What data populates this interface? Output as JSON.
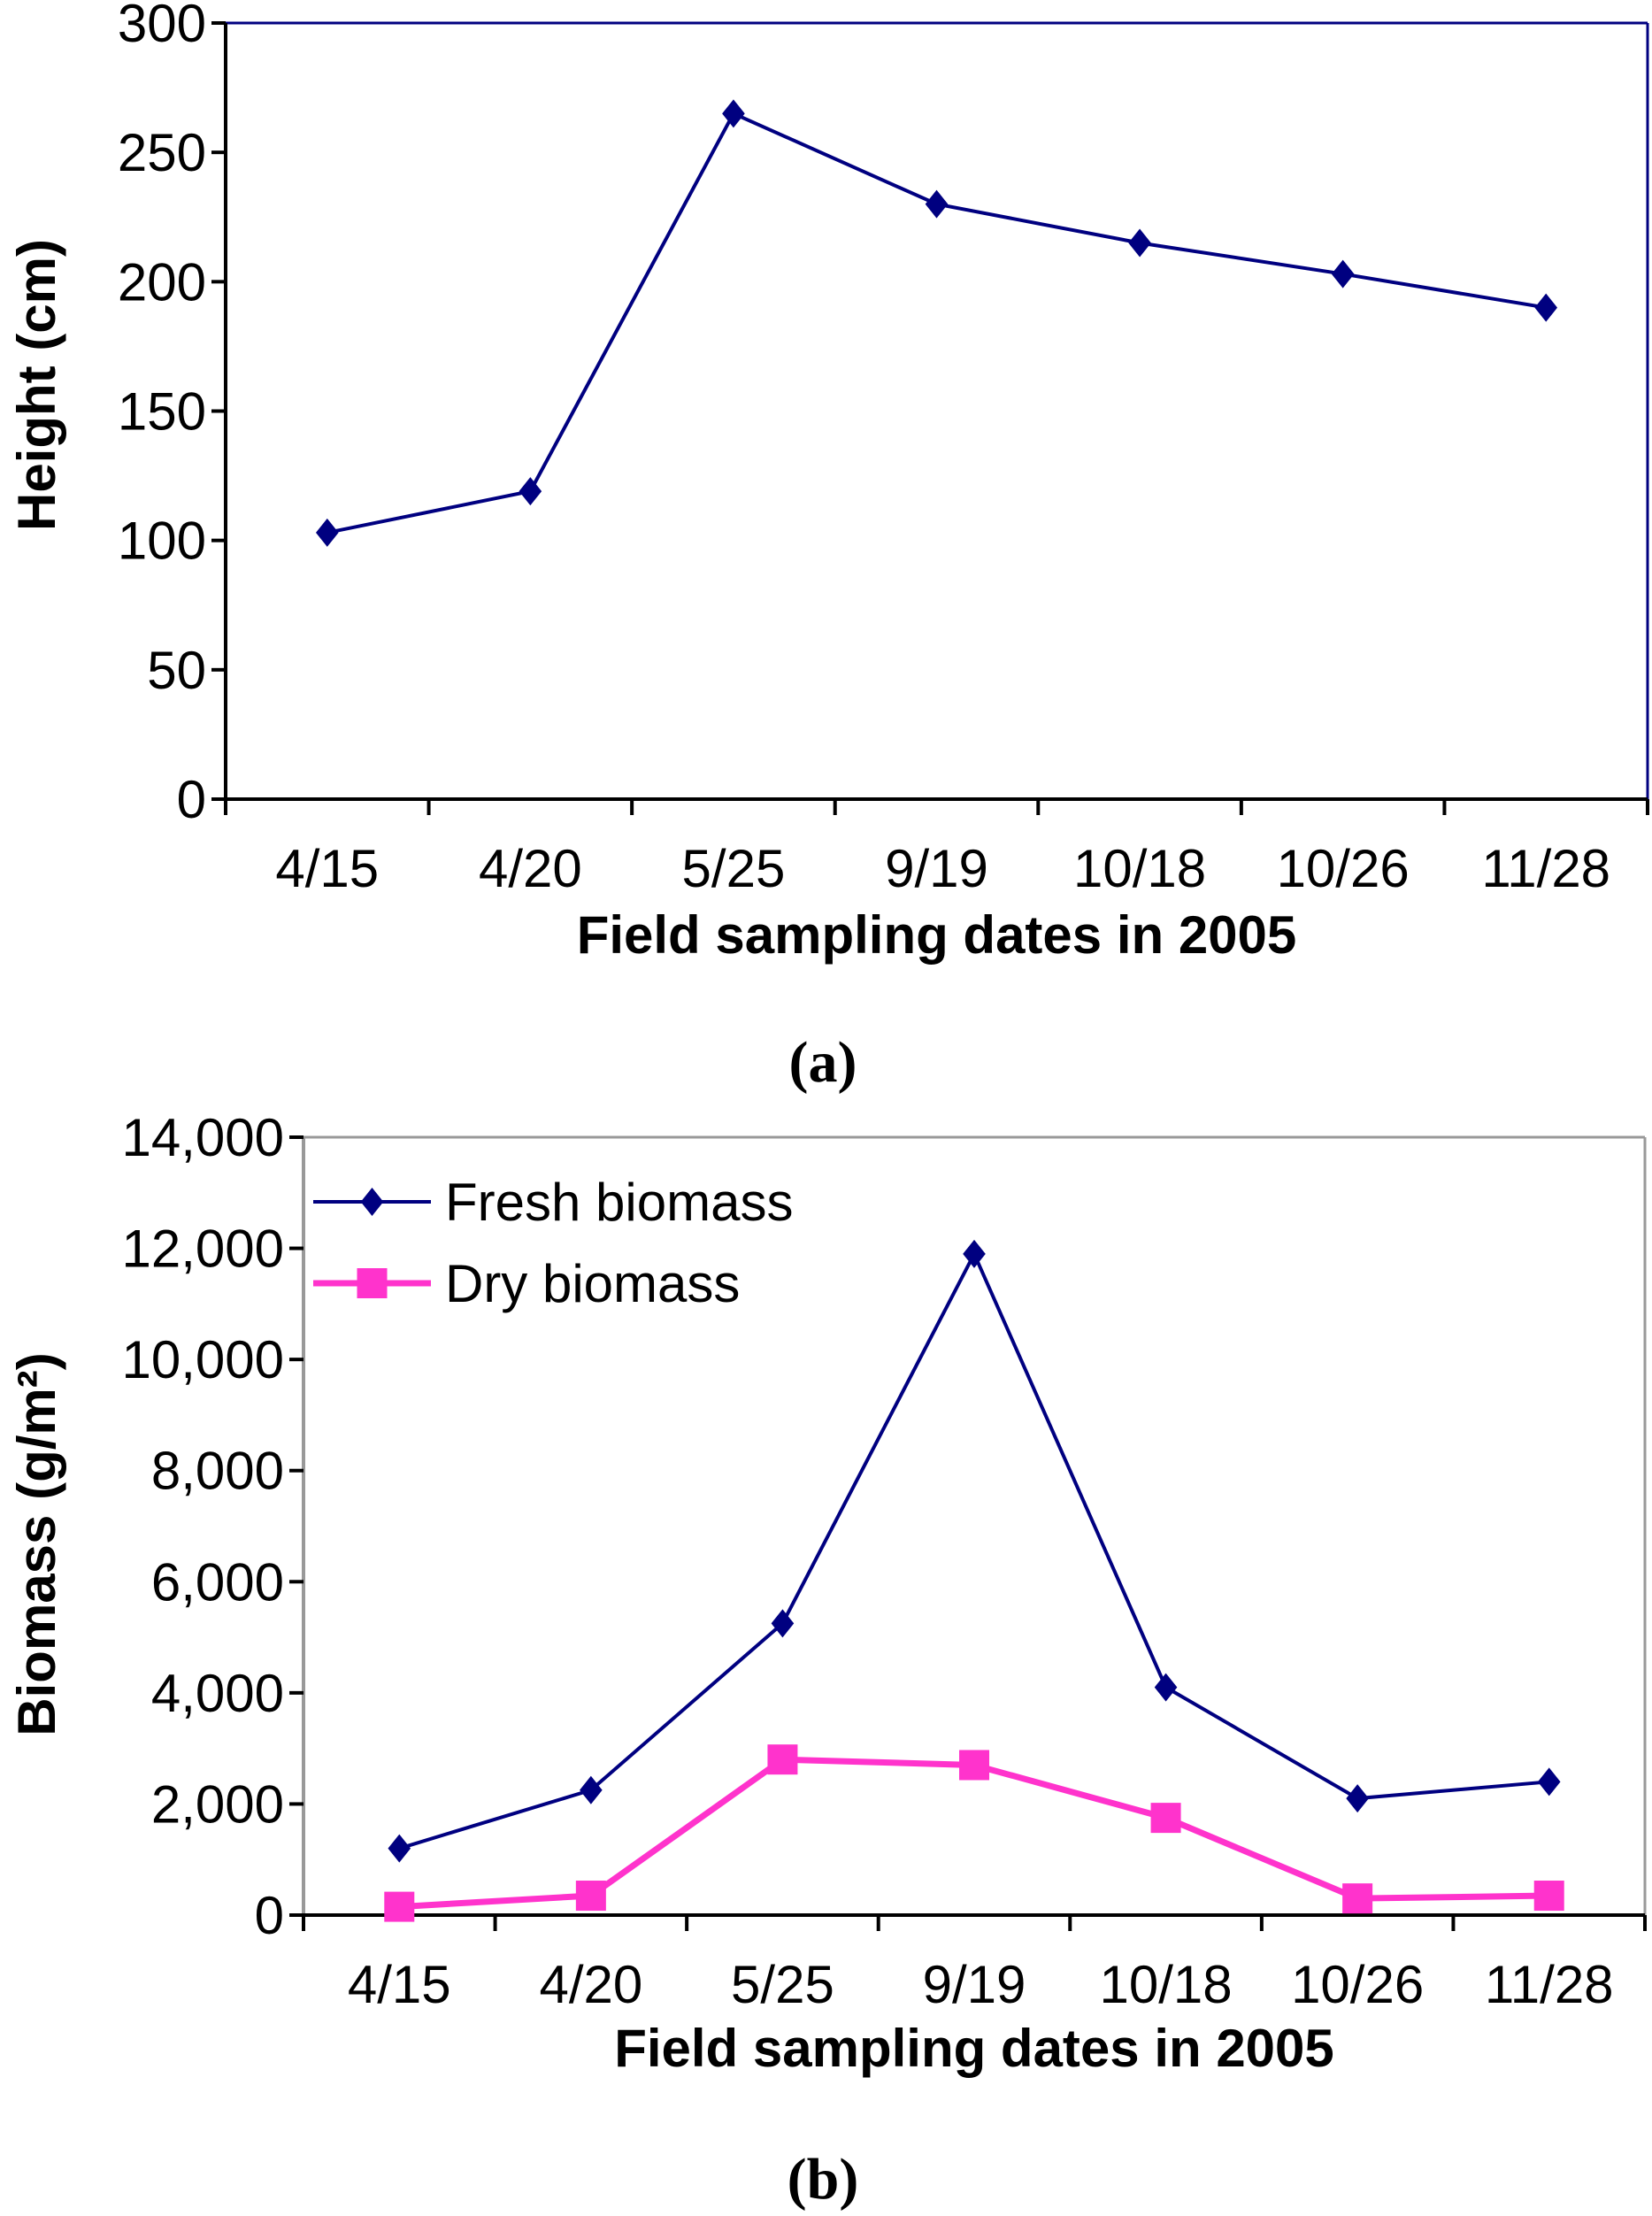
{
  "chart_data": [
    {
      "type": "line",
      "panel_label": "(a)",
      "categories": [
        "4/15",
        "4/20",
        "5/25",
        "9/19",
        "10/18",
        "10/26",
        "11/28"
      ],
      "xlabel": "Field sampling dates  in 2005",
      "ylabel": "Height (cm)",
      "ylim": [
        0,
        300
      ],
      "yticks": [
        0,
        50,
        100,
        150,
        200,
        250,
        300
      ],
      "ytick_labels": [
        "0",
        "50",
        "100",
        "150",
        "200",
        "250",
        "300"
      ],
      "grid": false,
      "legend": null,
      "series": [
        {
          "name": "Height",
          "color": "#000080",
          "marker": "diamond",
          "values": [
            103,
            119,
            265,
            230,
            215,
            203,
            190
          ]
        }
      ]
    },
    {
      "type": "line",
      "panel_label": "(b)",
      "categories": [
        "4/15",
        "4/20",
        "5/25",
        "9/19",
        "10/18",
        "10/26",
        "11/28"
      ],
      "xlabel": "Field sampling dates  in 2005",
      "ylabel": "Biomass (g/m²)",
      "ylim": [
        0,
        14000
      ],
      "yticks": [
        0,
        2000,
        4000,
        6000,
        8000,
        10000,
        12000,
        14000
      ],
      "ytick_labels": [
        "0",
        "2,000",
        "4,000",
        "6,000",
        "8,000",
        "10,000",
        "12,000",
        "14,000"
      ],
      "grid": false,
      "legend": "top-left",
      "series": [
        {
          "name": "Fresh biomass",
          "color": "#000080",
          "marker": "diamond",
          "values": [
            1200,
            2250,
            5250,
            11900,
            4100,
            2100,
            2400
          ]
        },
        {
          "name": "Dry biomass",
          "color": "#FF33CC",
          "marker": "square",
          "values": [
            150,
            350,
            2800,
            2700,
            1750,
            300,
            350
          ]
        }
      ]
    }
  ]
}
